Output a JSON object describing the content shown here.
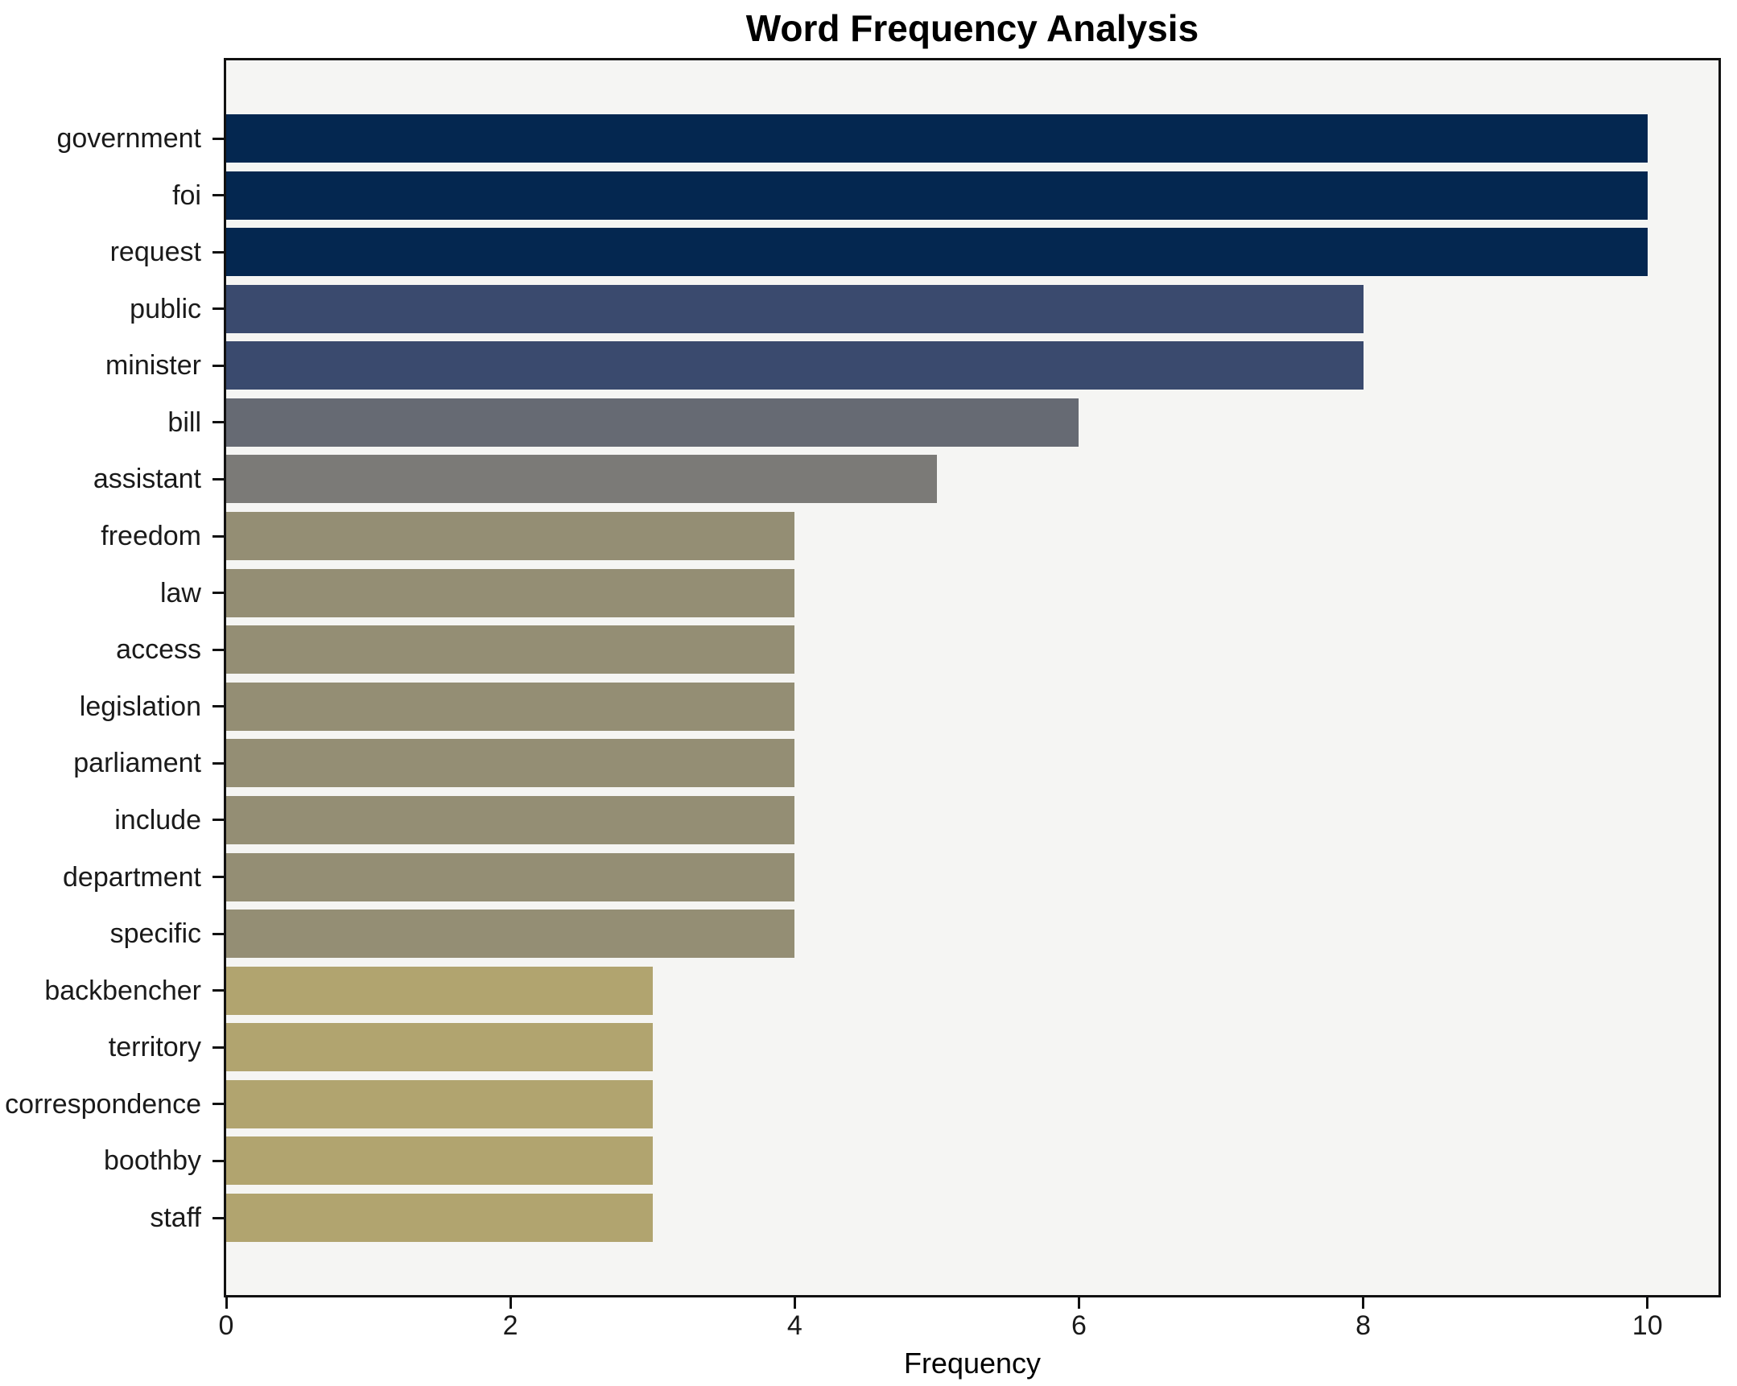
{
  "chart_data": {
    "type": "bar",
    "orientation": "horizontal",
    "title": "Word Frequency Analysis",
    "xlabel": "Frequency",
    "ylabel": "",
    "categories": [
      "government",
      "foi",
      "request",
      "public",
      "minister",
      "bill",
      "assistant",
      "freedom",
      "law",
      "access",
      "legislation",
      "parliament",
      "include",
      "department",
      "specific",
      "backbencher",
      "territory",
      "correspondence",
      "boothby",
      "staff"
    ],
    "values": [
      10,
      10,
      10,
      8,
      8,
      6,
      5,
      4,
      4,
      4,
      4,
      4,
      4,
      4,
      4,
      3,
      3,
      3,
      3,
      3
    ],
    "bar_colors": [
      "#042750",
      "#042750",
      "#042750",
      "#3a4a6e",
      "#3a4a6e",
      "#666a73",
      "#7b7a77",
      "#948e74",
      "#948e74",
      "#948e74",
      "#948e74",
      "#948e74",
      "#948e74",
      "#948e74",
      "#948e74",
      "#b1a46f",
      "#b1a46f",
      "#b1a46f",
      "#b1a46f",
      "#b1a46f"
    ],
    "xlim": [
      0,
      10.5
    ],
    "x_ticks": [
      0,
      2,
      4,
      6,
      8,
      10
    ],
    "grid": false,
    "legend": null,
    "colors": {
      "plot_background": "#f5f5f3",
      "figure_background": "#ffffff",
      "spine": "#111111",
      "tick_text": "#1a1a1a"
    }
  }
}
